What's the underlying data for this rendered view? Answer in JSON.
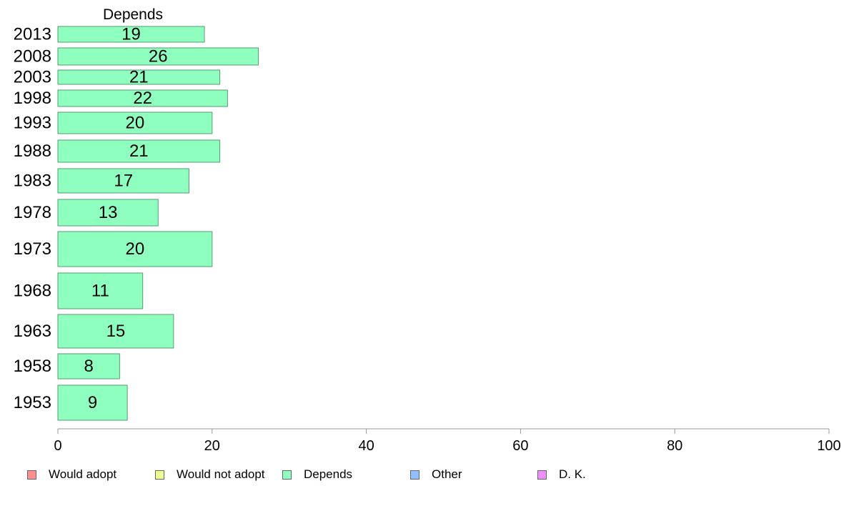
{
  "chart_data": {
    "type": "bar",
    "orientation": "horizontal",
    "title": "Depends",
    "categories": [
      "2013",
      "2008",
      "2003",
      "1998",
      "1993",
      "1988",
      "1983",
      "1978",
      "1973",
      "1968",
      "1963",
      "1958",
      "1953"
    ],
    "series": [
      {
        "name": "Depends",
        "color": "#8fffbf",
        "values": [
          19,
          26,
          21,
          22,
          20,
          21,
          17,
          13,
          20,
          11,
          15,
          8,
          9
        ]
      }
    ],
    "xlim": [
      0,
      100
    ],
    "xticks": [
      "0",
      "20",
      "40",
      "60",
      "80",
      "100"
    ],
    "grid": false,
    "legend_position": "bottom",
    "legend": [
      {
        "label": "Would adopt",
        "color": "#ff8f8f"
      },
      {
        "label": "Would not adopt",
        "color": "#efff8f"
      },
      {
        "label": "Depends",
        "color": "#8fffbf"
      },
      {
        "label": "Other",
        "color": "#8fbfff"
      },
      {
        "label": "D. K.",
        "color": "#ef8fff"
      }
    ]
  }
}
